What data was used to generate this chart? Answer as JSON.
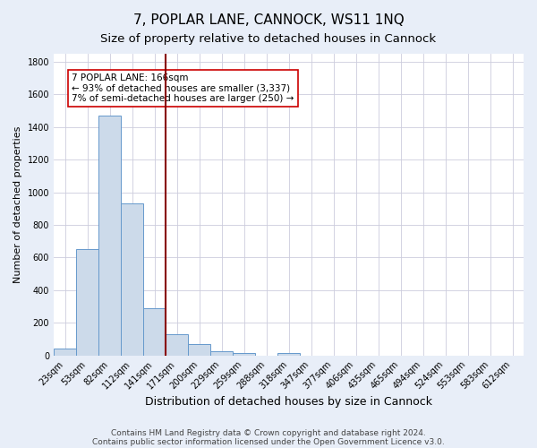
{
  "title": "7, POPLAR LANE, CANNOCK, WS11 1NQ",
  "subtitle": "Size of property relative to detached houses in Cannock",
  "xlabel": "Distribution of detached houses by size in Cannock",
  "ylabel": "Number of detached properties",
  "bar_labels": [
    "23sqm",
    "53sqm",
    "82sqm",
    "112sqm",
    "141sqm",
    "171sqm",
    "200sqm",
    "229sqm",
    "259sqm",
    "288sqm",
    "318sqm",
    "347sqm",
    "377sqm",
    "406sqm",
    "435sqm",
    "465sqm",
    "494sqm",
    "524sqm",
    "553sqm",
    "583sqm",
    "612sqm"
  ],
  "bar_values": [
    40,
    650,
    1470,
    935,
    290,
    130,
    68,
    25,
    15,
    0,
    15,
    0,
    0,
    0,
    0,
    0,
    0,
    0,
    0,
    0,
    0
  ],
  "bar_color": "#ccdaea",
  "bar_edge_color": "#6699cc",
  "vline_x": 4.5,
  "vline_color": "#880000",
  "ylim": [
    0,
    1850
  ],
  "yticks": [
    0,
    200,
    400,
    600,
    800,
    1000,
    1200,
    1400,
    1600,
    1800
  ],
  "annotation_title": "7 POPLAR LANE: 166sqm",
  "annotation_line1": "← 93% of detached houses are smaller (3,337)",
  "annotation_line2": "7% of semi-detached houses are larger (250) →",
  "annotation_box_edge": "#cc0000",
  "footer1": "Contains HM Land Registry data © Crown copyright and database right 2024.",
  "footer2": "Contains public sector information licensed under the Open Government Licence v3.0.",
  "plot_bg_color": "#ffffff",
  "fig_bg_color": "#e8eef8",
  "grid_color": "#ccccdd",
  "title_fontsize": 11,
  "subtitle_fontsize": 9.5,
  "xlabel_fontsize": 9,
  "ylabel_fontsize": 8,
  "tick_fontsize": 7,
  "footer_fontsize": 6.5,
  "annot_fontsize": 7.5
}
